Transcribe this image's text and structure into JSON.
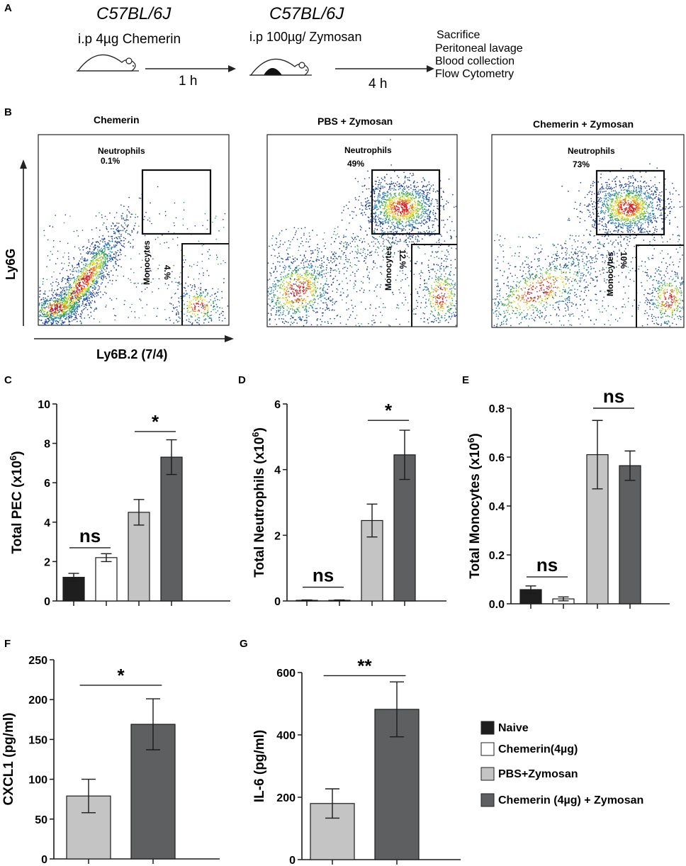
{
  "panel_letters": {
    "a": "A",
    "b": "B",
    "c": "C",
    "d": "D",
    "e": "E",
    "f": "F",
    "g": "G"
  },
  "schematic": {
    "strain1": "C57BL/6J",
    "treatment1": "i.p 4µg Chemerin",
    "time1": "1 h",
    "strain2": "C57BL/6J",
    "treatment2": "i.p 100µg/ Zymosan",
    "time2": "4 h",
    "readouts": [
      "Sacrifice",
      "Peritoneal lavage",
      "Blood collection",
      "Flow Cytometry"
    ]
  },
  "flow": {
    "y_axis": "Ly6G",
    "x_axis": "Ly6B.2 (7/4)",
    "plots": [
      {
        "title": "Chemerin",
        "neut_label": "Neutrophils",
        "neut_pct": "0.1%",
        "mono_label": "Monocytes",
        "mono_pct": "4.%"
      },
      {
        "title": "PBS + Zymosan",
        "neut_label": "Neutrophils",
        "neut_pct": "49%",
        "mono_label": "Monocytes",
        "mono_pct": "12.%"
      },
      {
        "title": "Chemerin + Zymosan",
        "neut_label": "Neutrophils",
        "neut_pct": "73%",
        "mono_label": "Monocytes",
        "mono_pct": "10%"
      }
    ]
  },
  "colors": {
    "naive": "#1e1e1e",
    "chemerin": "#ffffff",
    "pbs_zymosan": "#c4c4c4",
    "chemerin_zymosan": "#5e5f61",
    "axis": "#1a1a1a",
    "gate": "#111111"
  },
  "legend": {
    "entries": [
      {
        "label": "Naive",
        "color_key": "naive"
      },
      {
        "label": "Chemerin(4µg)",
        "color_key": "chemerin"
      },
      {
        "label": "PBS+Zymosan",
        "color_key": "pbs_zymosan"
      },
      {
        "label": "Chemerin (4µg) + Zymosan",
        "color_key": "chemerin_zymosan"
      }
    ]
  },
  "chart_data": [
    {
      "id": "C",
      "type": "bar",
      "ylabel": "Total PEC (x10",
      "ylabel_sup": "6",
      "ylabel_end": ")",
      "ylim": [
        0,
        10
      ],
      "yticks": [
        0,
        2,
        4,
        6,
        8,
        10
      ],
      "categories": [
        "Naive",
        "Chemerin(4µg)",
        "PBS+Zymosan",
        "Chemerin (4µg) + Zymosan"
      ],
      "color_keys": [
        "naive",
        "chemerin",
        "pbs_zymosan",
        "chemerin_zymosan"
      ],
      "values": [
        1.2,
        2.2,
        4.5,
        7.3
      ],
      "errors": [
        0.2,
        0.2,
        0.65,
        0.88
      ],
      "significance": [
        {
          "label": "ns",
          "from": 0,
          "to": 1,
          "y": 2.7
        },
        {
          "label": "*",
          "from": 2,
          "to": 3,
          "y": 8.6
        }
      ]
    },
    {
      "id": "D",
      "type": "bar",
      "ylabel": "Total Neutrophils (x10",
      "ylabel_sup": "6",
      "ylabel_end": ")",
      "ylim": [
        0,
        6
      ],
      "yticks": [
        0,
        2,
        4,
        6
      ],
      "categories": [
        "Naive",
        "Chemerin(4µg)",
        "PBS+Zymosan",
        "Chemerin (4µg) + Zymosan"
      ],
      "color_keys": [
        "naive",
        "chemerin",
        "pbs_zymosan",
        "chemerin_zymosan"
      ],
      "values": [
        0.02,
        0.02,
        2.45,
        4.45
      ],
      "errors": [
        0.01,
        0.01,
        0.5,
        0.75
      ],
      "significance": [
        {
          "label": "ns",
          "from": 0,
          "to": 1,
          "y": 0.42
        },
        {
          "label": "*",
          "from": 2,
          "to": 3,
          "y": 5.5
        }
      ]
    },
    {
      "id": "E",
      "type": "bar",
      "ylabel": "Total Monocytes (x10",
      "ylabel_sup": "6",
      "ylabel_end": ")",
      "ylim": [
        0,
        0.8
      ],
      "yticks": [
        0.0,
        0.2,
        0.4,
        0.6,
        0.8
      ],
      "ytick_labels": [
        "0.0",
        "0.2",
        "0.4",
        "0.6",
        "0.8"
      ],
      "categories": [
        "Naive",
        "Chemerin(4µg)",
        "PBS+Zymosan",
        "Chemerin (4µg) + Zymosan"
      ],
      "color_keys": [
        "naive",
        "chemerin",
        "pbs_zymosan",
        "chemerin_zymosan"
      ],
      "values": [
        0.058,
        0.02,
        0.61,
        0.565
      ],
      "errors": [
        0.015,
        0.008,
        0.14,
        0.06
      ],
      "significance": [
        {
          "label": "ns",
          "from": 0,
          "to": 1,
          "y": 0.11
        },
        {
          "label": "ns",
          "from": 2,
          "to": 3,
          "y": 0.8
        }
      ]
    },
    {
      "id": "F",
      "type": "bar",
      "ylabel": "CXCL1 (pg/ml)",
      "ylim": [
        0,
        250
      ],
      "yticks": [
        0,
        50,
        100,
        150,
        200,
        250
      ],
      "categories": [
        "PBS+Zymosan",
        "Chemerin (4µg) + Zymosan"
      ],
      "color_keys": [
        "pbs_zymosan",
        "chemerin_zymosan"
      ],
      "values": [
        79,
        169
      ],
      "errors": [
        21,
        32
      ],
      "significance": [
        {
          "label": "*",
          "from": 0,
          "to": 1,
          "y": 218
        }
      ]
    },
    {
      "id": "G",
      "type": "bar",
      "ylabel": "IL-6 (pg/ml)",
      "ylim": [
        0,
        600
      ],
      "yticks": [
        0,
        200,
        400,
        600
      ],
      "categories": [
        "PBS+Zymosan",
        "Chemerin (4µg) + Zymosan"
      ],
      "color_keys": [
        "pbs_zymosan",
        "chemerin_zymosan"
      ],
      "values": [
        180,
        482
      ],
      "errors": [
        47,
        88
      ],
      "significance": [
        {
          "label": "**",
          "from": 0,
          "to": 1,
          "y": 590
        }
      ]
    }
  ]
}
